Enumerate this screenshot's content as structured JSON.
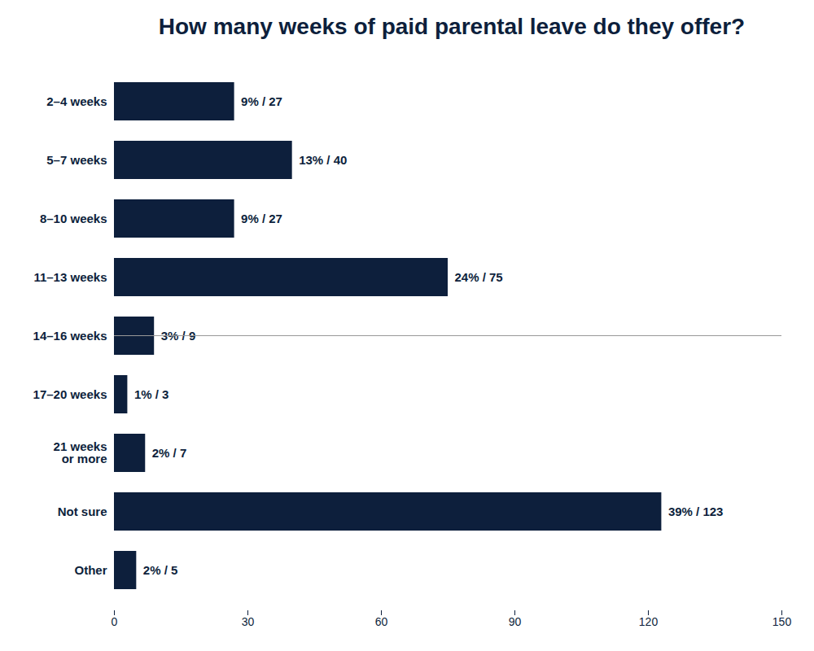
{
  "chart_data": {
    "type": "bar",
    "orientation": "horizontal",
    "title": "How many weeks of paid parental leave do they offer?",
    "categories": [
      "2–4 weeks",
      "5–7 weeks",
      "8–10 weeks",
      "11–13 weeks",
      "14–16 weeks",
      "17–20 weeks",
      "21 weeks\nor more",
      "Not sure",
      "Other"
    ],
    "values": [
      27,
      40,
      27,
      75,
      9,
      3,
      7,
      123,
      5
    ],
    "value_labels": [
      "9% / 27",
      "13% / 40",
      "9% / 27",
      "24% / 75",
      "3% / 9",
      "1% / 3",
      "2% / 7",
      "39% / 123",
      "2% / 5"
    ],
    "data_labels": true,
    "color": "#0d1f3c",
    "xlim": [
      0,
      150
    ],
    "xticks": [
      0,
      30,
      60,
      90,
      120,
      150
    ],
    "grid": false
  }
}
